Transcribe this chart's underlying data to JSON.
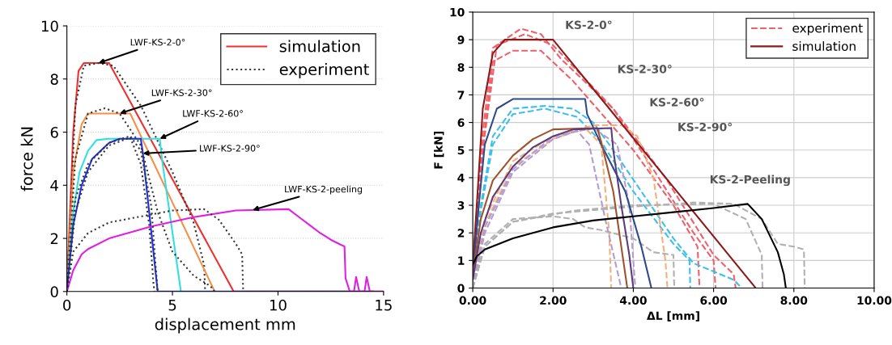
{
  "chart_data": [
    {
      "type": "line",
      "xlabel": "displacement mm",
      "ylabel": "force kN",
      "xlim": [
        0,
        15
      ],
      "xticks": [
        0,
        5,
        10,
        15
      ],
      "ylim": [
        0,
        10
      ],
      "yticks": [
        0,
        2,
        4,
        6,
        8,
        10
      ],
      "grid": "y",
      "legend": "top right",
      "marker": "none",
      "annotations": [
        {
          "text": "LWF-KS-2-0°",
          "x": 1.5,
          "y": 8.6
        },
        {
          "text": "LWF-KS-2-30°",
          "x": 2.5,
          "y": 6.7
        },
        {
          "text": "LWF-KS-2-60°",
          "x": 4.4,
          "y": 5.75
        },
        {
          "text": "LWF-KS-2-90°",
          "x": 3.6,
          "y": 5.2
        },
        {
          "text": "LWF-KS-2-peeling",
          "x": 8.8,
          "y": 3.07
        }
      ],
      "series": [
        {
          "name": "simulation",
          "color": "#f03030",
          "line_style": "solid",
          "x": [
            0,
            0.3,
            0.55,
            0.8,
            2.0,
            7.9,
            15
          ],
          "values": [
            0,
            6,
            8.3,
            8.6,
            8.6,
            0,
            0
          ]
        },
        {
          "name": "experiment",
          "color": "#333333",
          "line_style": "dotted",
          "x": [
            0,
            0.4,
            0.8,
            1.5,
            2.2,
            3.5,
            5,
            6,
            6.5,
            6.55
          ],
          "values": [
            0,
            7,
            8.5,
            8.6,
            8.5,
            7.0,
            4.5,
            2.6,
            1.0,
            0
          ]
        },
        {
          "color": "#f4904a",
          "line_style": "solid",
          "x": [
            0,
            0.3,
            0.7,
            1.0,
            3.0,
            7.0
          ],
          "values": [
            0,
            4.5,
            6.3,
            6.7,
            6.7,
            0
          ]
        },
        {
          "color": "#30e0e0",
          "line_style": "solid",
          "x": [
            0,
            0.3,
            0.6,
            1.0,
            1.4,
            2.0,
            4.4,
            4.5,
            5.4
          ],
          "values": [
            0,
            3,
            4.5,
            5.3,
            5.7,
            5.75,
            5.75,
            5.0,
            0
          ]
        },
        {
          "color": "#2030e0",
          "line_style": "solid",
          "x": [
            0,
            0.3,
            0.7,
            1.2,
            2.0,
            2.5,
            3.5,
            3.6,
            4.3,
            14.5
          ],
          "values": [
            0,
            2.5,
            4,
            5,
            5.6,
            5.75,
            5.75,
            5.2,
            0,
            0
          ]
        },
        {
          "color": "#e020e0",
          "line_style": "solid",
          "x": [
            0,
            0.3,
            0.7,
            1,
            2,
            4,
            6,
            8,
            10.5,
            11,
            11.5,
            12,
            12.5,
            13,
            13.15,
            13.2,
            13.4,
            13.6,
            13.7,
            13.85,
            14.1,
            14.2,
            14.35,
            15
          ],
          "values": [
            0,
            0.8,
            1.4,
            1.6,
            2.0,
            2.45,
            2.8,
            3.05,
            3.1,
            2.8,
            2.5,
            2.2,
            1.95,
            1.75,
            1.7,
            0.5,
            0,
            0,
            0.55,
            0,
            0,
            0.55,
            0,
            0
          ]
        },
        {
          "color": "#333333",
          "line_style": "dotted",
          "x": [
            0,
            0.4,
            1,
            1.8,
            2.5,
            3.5,
            4.3,
            5,
            6,
            6.8,
            7
          ],
          "values": [
            0,
            5,
            6.7,
            6.9,
            6.7,
            5.5,
            3,
            1.5,
            0.6,
            0.2,
            0
          ]
        },
        {
          "color": "#333333",
          "line_style": "dotted",
          "x": [
            0,
            0.4,
            1,
            2,
            3,
            3.5,
            4,
            4.2,
            4.3
          ],
          "values": [
            0,
            3.5,
            4.8,
            5.6,
            5.85,
            5.3,
            3.2,
            1,
            0
          ]
        },
        {
          "color": "#333333",
          "line_style": "dotted",
          "x": [
            0,
            0.4,
            1,
            2,
            3,
            3.5,
            3.9,
            4.1,
            4.15
          ],
          "values": [
            0,
            3,
            4.5,
            5.5,
            5.8,
            4.8,
            2.5,
            0.3,
            0
          ]
        },
        {
          "color": "#333333",
          "line_style": "dotted",
          "x": [
            0,
            0.3,
            1,
            2,
            4,
            5,
            6.5,
            7.2,
            8,
            8.3,
            8.35
          ],
          "values": [
            0,
            1.5,
            2.2,
            2.6,
            2.9,
            3.05,
            3.1,
            2.7,
            1.8,
            1.4,
            0
          ]
        }
      ]
    },
    {
      "type": "line",
      "xlabel": "ΔL [mm]",
      "ylabel": "F [kN]",
      "xlim": [
        0,
        10
      ],
      "xticks": [
        {
          "value": 0,
          "label": "0.00"
        },
        {
          "value": 2,
          "label": "2.00"
        },
        {
          "value": 4,
          "label": "4.00"
        },
        {
          "value": 6,
          "label": "6.00"
        },
        {
          "value": 8,
          "label": "8.00"
        },
        {
          "value": 10,
          "label": "10.00"
        }
      ],
      "ylim": [
        0,
        10
      ],
      "yticks": [
        0,
        1,
        2,
        3,
        4,
        5,
        6,
        7,
        8,
        9,
        10
      ],
      "grid": true,
      "legend": "top right",
      "marker": "none",
      "annotations": [
        "KS-2-0°",
        "KS-2-30°",
        "KS-2-60°",
        "KS-2-90°",
        "KS-2-Peeling"
      ],
      "series": [
        {
          "name": "experiment",
          "color": "#f0606a",
          "line_style": "dashed",
          "x": [
            0,
            0.2,
            0.5,
            1.2,
            1.7,
            2.2,
            3.5,
            4.5,
            5.5,
            6,
            6.05
          ],
          "values": [
            0,
            5,
            8.7,
            9.4,
            9.2,
            8.3,
            6.5,
            4.3,
            2,
            1,
            0
          ]
        },
        {
          "color": "#f0606a",
          "line_style": "dashed",
          "x": [
            0,
            0.2,
            0.5,
            1,
            1.7,
            2.5,
            4,
            5,
            5.6,
            5.65
          ],
          "values": [
            0,
            4.5,
            8.2,
            8.6,
            8.6,
            7.5,
            5,
            3,
            1.5,
            0
          ]
        },
        {
          "color": "#f0606a",
          "line_style": "dashed",
          "x": [
            0,
            0.25,
            0.6,
            1.3,
            2,
            3.5,
            4.8,
            6,
            6.5,
            6.55
          ],
          "values": [
            0,
            5,
            8.8,
            9.2,
            8.8,
            6.5,
            4,
            1.2,
            0.5,
            0
          ]
        },
        {
          "color": "#3fbfe8",
          "line_style": "dashed",
          "x": [
            0,
            0.2,
            0.5,
            1,
            1.8,
            2.5,
            3,
            3.5,
            4.2,
            5,
            5.5,
            6.5,
            6.7
          ],
          "values": [
            0,
            3,
            5.5,
            6.5,
            6.6,
            6.5,
            6.0,
            5,
            3.5,
            1.8,
            0.9,
            0.3,
            0
          ]
        },
        {
          "color": "#3fbfe8",
          "line_style": "dashed",
          "x": [
            0,
            0.2,
            0.5,
            1,
            1.8,
            2.6,
            3.2,
            4,
            5,
            5.4,
            5.42
          ],
          "values": [
            0,
            2.8,
            5.2,
            6.3,
            6.5,
            6.2,
            5.3,
            3.5,
            1.6,
            1.0,
            0
          ]
        },
        {
          "color": "#f4b07c",
          "line_style": "dashed",
          "x": [
            0,
            0.3,
            1,
            2,
            3,
            3.7,
            4.1,
            4.5,
            4.8,
            4.85
          ],
          "values": [
            0,
            2.5,
            4.6,
            5.5,
            5.9,
            5.9,
            5.5,
            4,
            1,
            0
          ]
        },
        {
          "color": "#f4b07c",
          "line_style": "dashed",
          "x": [
            0,
            0.3,
            1,
            2,
            2.8,
            3.2,
            3.4,
            3.45
          ],
          "values": [
            0,
            2.3,
            4.4,
            5.4,
            5.8,
            5.2,
            2,
            0
          ]
        },
        {
          "color": "#b49bd0",
          "line_style": "dashed",
          "x": [
            0,
            0.3,
            1,
            2,
            2.6,
            2.9,
            3.3,
            3.7
          ],
          "values": [
            0,
            2,
            4.2,
            5.4,
            5.7,
            5.2,
            2.5,
            0
          ]
        },
        {
          "color": "#b49bd0",
          "line_style": "dashed",
          "x": [
            0,
            0.3,
            1,
            2,
            3,
            3.6,
            3.9,
            4.05
          ],
          "values": [
            0,
            2.2,
            4.3,
            5.5,
            5.8,
            5.2,
            3,
            0
          ]
        },
        {
          "color": "#b0b0b0",
          "line_style": "dashed",
          "x": [
            0,
            0.3,
            1,
            2,
            4,
            5.5,
            6.5,
            7.2,
            7.6,
            8.0,
            8.25,
            8.27
          ],
          "values": [
            0,
            1.5,
            2.4,
            2.7,
            2.95,
            3.1,
            3.05,
            2.5,
            1.6,
            1.5,
            1.4,
            0
          ]
        },
        {
          "color": "#b0b0b0",
          "line_style": "dashed",
          "x": [
            0,
            0.3,
            1,
            2,
            2.5,
            2.8,
            3.2,
            4,
            4.5,
            5,
            5.02
          ],
          "values": [
            0,
            1.6,
            2.5,
            2.6,
            2.5,
            2.2,
            2.1,
            1.8,
            1.3,
            1.2,
            0
          ]
        },
        {
          "color": "#b0b0b0",
          "line_style": "dashed",
          "x": [
            0,
            0.3,
            1,
            2.5,
            4,
            6,
            6.8,
            7.2,
            7.22
          ],
          "values": [
            0,
            1.5,
            2.4,
            2.8,
            3.0,
            3.05,
            2.5,
            1.2,
            0
          ]
        },
        {
          "name": "simulation",
          "color": "#8b1a1a",
          "line_style": "solid",
          "x": [
            0,
            0.1,
            0.25,
            0.5,
            0.8,
            2.0,
            7.05
          ],
          "values": [
            0.8,
            3,
            6.5,
            8.5,
            9.0,
            9.0,
            0
          ]
        },
        {
          "color": "#2e4a8a",
          "line_style": "solid",
          "x": [
            0,
            0.15,
            0.3,
            0.6,
            1.0,
            2.8,
            2.85,
            3.2,
            3.8,
            4.2,
            4.45
          ],
          "values": [
            0.5,
            3,
            5.2,
            6.5,
            6.85,
            6.85,
            6.3,
            5.2,
            3.5,
            1.5,
            0
          ]
        },
        {
          "color": "#a0522d",
          "line_style": "solid",
          "x": [
            0,
            0.2,
            0.5,
            1,
            1.5,
            2,
            3.1,
            3.2,
            3.5,
            3.75,
            3.85
          ],
          "values": [
            0.5,
            2.5,
            3.9,
            4.8,
            5.4,
            5.75,
            5.8,
            5.3,
            3.5,
            1,
            0
          ]
        },
        {
          "color": "#5a3d7a",
          "line_style": "solid",
          "x": [
            0,
            0.2,
            0.5,
            1,
            1.5,
            2,
            2.5,
            3.45,
            3.5,
            3.7,
            3.9,
            4.0
          ],
          "values": [
            0.3,
            2,
            3.3,
            4.4,
            5.1,
            5.5,
            5.75,
            5.8,
            5.0,
            3.0,
            1.2,
            0
          ]
        },
        {
          "color": "#000000",
          "line_style": "solid",
          "x": [
            0,
            0.1,
            0.3,
            1,
            2,
            3,
            4,
            5,
            6,
            6.85,
            7.2,
            7.6,
            7.75,
            7.8
          ],
          "values": [
            0.85,
            1.15,
            1.4,
            1.8,
            2.2,
            2.45,
            2.6,
            2.75,
            2.9,
            3.05,
            2.5,
            1.3,
            0.5,
            0
          ]
        }
      ]
    }
  ]
}
